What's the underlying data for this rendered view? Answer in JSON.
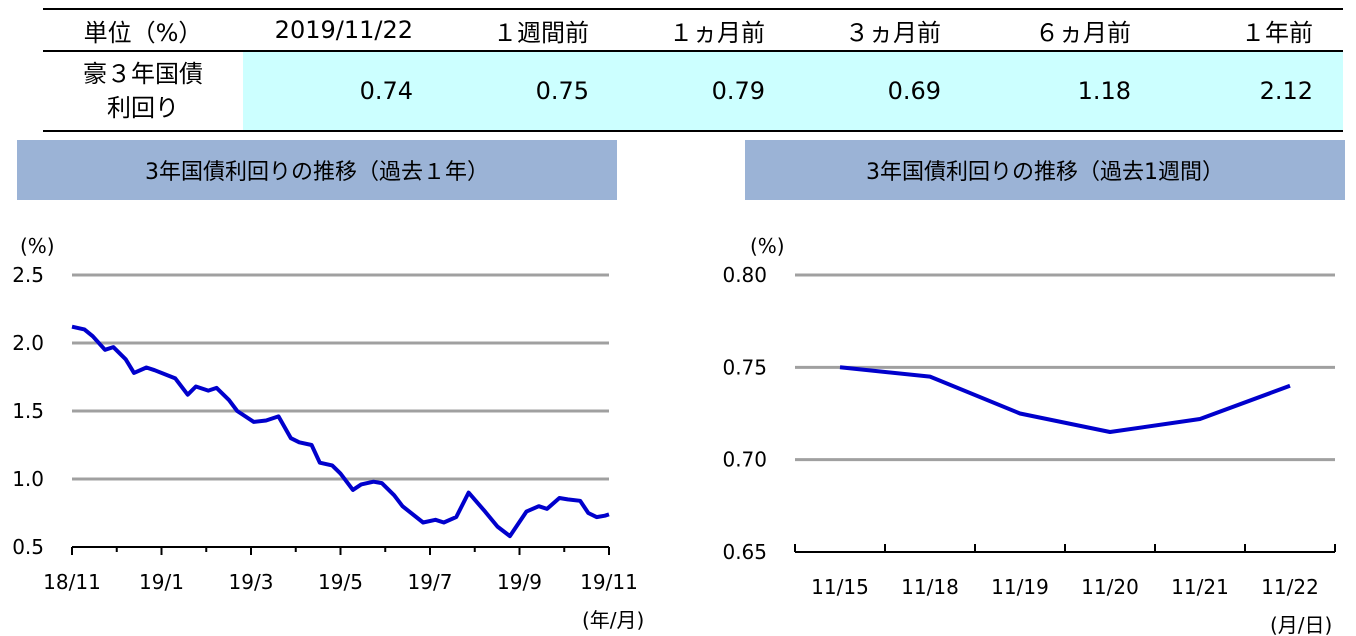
{
  "table": {
    "headers": [
      "単位（%）",
      "2019/11/22",
      "１週間前",
      "１ヵ月前",
      "３ヵ月前",
      "６ヵ月前",
      "１年前"
    ],
    "row_label_line1": "豪３年国債",
    "row_label_line2": "利回り",
    "values": [
      "0.74",
      "0.75",
      "0.79",
      "0.69",
      "1.18",
      "2.12"
    ]
  },
  "chart_data": [
    {
      "type": "line",
      "title": "3年国債利回りの推移（過去１年）",
      "ylabel": "(%)",
      "xlabel": "(年/月)",
      "ylim": [
        0.5,
        2.5
      ],
      "yticks": [
        "2.5",
        "2.0",
        "1.5",
        "1.0",
        "0.5"
      ],
      "xtick_labels": [
        "18/11",
        "19/1",
        "19/3",
        "19/5",
        "19/7",
        "19/9",
        "19/11"
      ],
      "grid": true,
      "color": "#0000cc",
      "series": [
        {
          "x_months": [
            0,
            0.3,
            0.5,
            0.8,
            1.0,
            1.3,
            1.5,
            1.8,
            2.0,
            2.5,
            2.8,
            3.0,
            3.3,
            3.5,
            3.8,
            4.0,
            4.4,
            4.7,
            5.0,
            5.3,
            5.5,
            5.8,
            6.0,
            6.3,
            6.5,
            6.8,
            7.0,
            7.3,
            7.5,
            7.8,
            8.0,
            8.5,
            8.8,
            9.0,
            9.3,
            9.6,
            10.0,
            10.3,
            10.6,
            11.0,
            11.3,
            11.5,
            11.8,
            12.0,
            12.3,
            12.5,
            12.7,
            12.9,
            13.0
          ],
          "values": [
            2.12,
            2.1,
            2.05,
            1.95,
            1.97,
            1.88,
            1.78,
            1.82,
            1.8,
            1.74,
            1.62,
            1.68,
            1.65,
            1.67,
            1.58,
            1.5,
            1.42,
            1.43,
            1.46,
            1.3,
            1.27,
            1.25,
            1.12,
            1.1,
            1.04,
            0.92,
            0.96,
            0.98,
            0.97,
            0.88,
            0.8,
            0.68,
            0.7,
            0.68,
            0.72,
            0.9,
            0.76,
            0.65,
            0.58,
            0.76,
            0.8,
            0.78,
            0.86,
            0.85,
            0.84,
            0.75,
            0.72,
            0.73,
            0.74
          ]
        }
      ]
    },
    {
      "type": "line",
      "title": "3年国債利回りの推移（過去1週間）",
      "ylabel": "(%)",
      "xlabel": "(月/日)",
      "ylim": [
        0.65,
        0.8
      ],
      "yticks": [
        "0.80",
        "0.75",
        "0.70",
        "0.65"
      ],
      "categories": [
        "11/15",
        "11/18",
        "11/19",
        "11/20",
        "11/21",
        "11/22"
      ],
      "grid": true,
      "color": "#0000cc",
      "series": [
        {
          "values": [
            0.75,
            0.745,
            0.725,
            0.715,
            0.722,
            0.74
          ]
        }
      ]
    }
  ]
}
